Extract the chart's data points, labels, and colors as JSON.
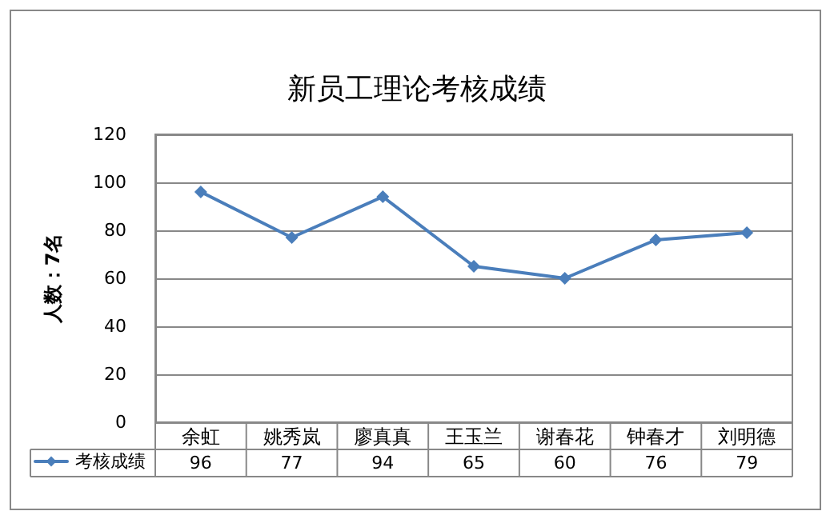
{
  "chart_data": {
    "type": "line",
    "title": "新员工理论考核成绩",
    "ylabel": "人数：7名",
    "categories": [
      "余虹",
      "姚秀岚",
      "廖真真",
      "王玉兰",
      "谢春花",
      "钟春才",
      "刘明德"
    ],
    "series": [
      {
        "name": "考核成绩",
        "color": "#4a7ebb",
        "values": [
          96,
          77,
          94,
          65,
          60,
          76,
          79
        ]
      }
    ],
    "ylim": [
      0,
      120
    ],
    "yticks": [
      0,
      20,
      40,
      60,
      80,
      100,
      120
    ],
    "grid": "y",
    "marker": "diamond",
    "line_style": "solid",
    "legend": "bottom left",
    "data_labels": true
  }
}
